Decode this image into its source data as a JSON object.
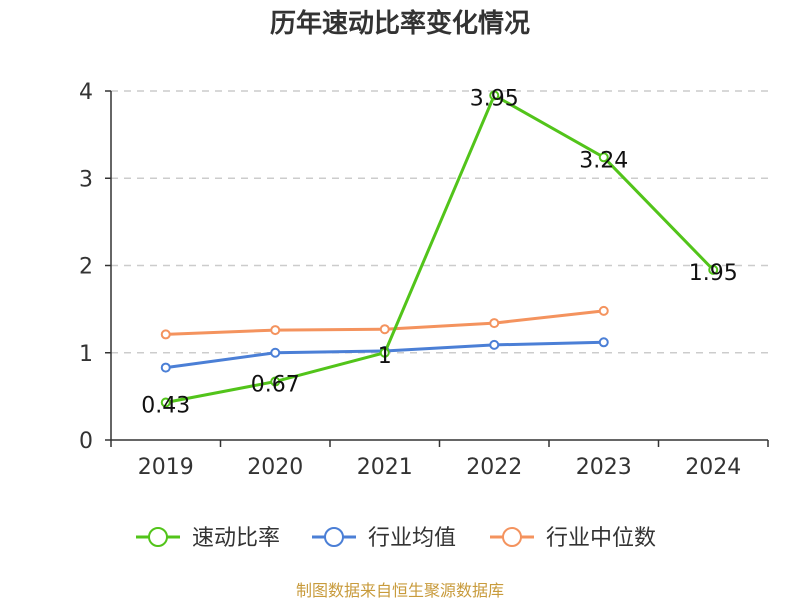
{
  "chart_data": {
    "type": "line",
    "title": "历年速动比率变化情况",
    "categories": [
      "2019",
      "2020",
      "2021",
      "2022",
      "2023",
      "2024"
    ],
    "ylim": [
      0,
      4
    ],
    "yticks": [
      "0",
      "1",
      "2",
      "3",
      "4"
    ],
    "grid": true,
    "legend_position": "bottom",
    "series": [
      {
        "name": "速动比率",
        "color": "#52c41a",
        "values": [
          0.43,
          0.67,
          1.0,
          3.95,
          3.24,
          1.95
        ],
        "labels": [
          "0.43",
          "0.67",
          "1",
          "3.95",
          "3.24",
          "1.95"
        ]
      },
      {
        "name": "行业均值",
        "color": "#4b7fd6",
        "values": [
          0.83,
          1.0,
          1.02,
          1.09,
          1.12,
          null
        ]
      },
      {
        "name": "行业中位数",
        "color": "#f4935e",
        "values": [
          1.21,
          1.26,
          1.27,
          1.34,
          1.48,
          null
        ]
      }
    ]
  },
  "source_text": "制图数据来自恒生聚源数据库"
}
